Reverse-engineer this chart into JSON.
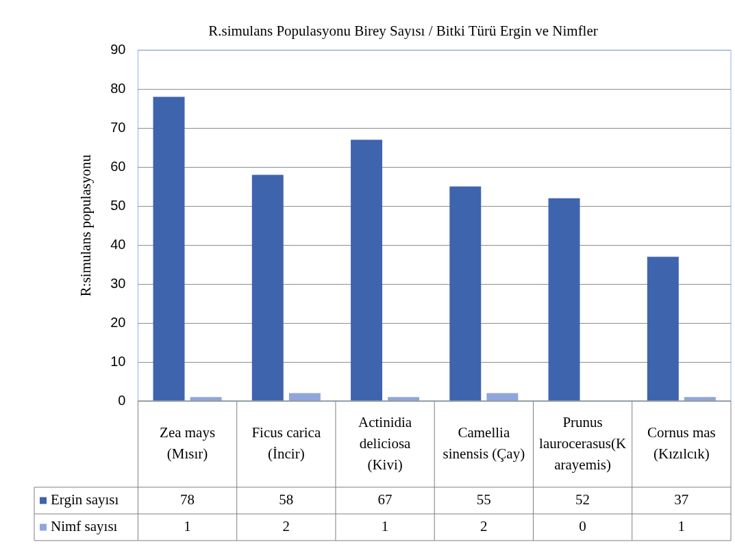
{
  "chart_data": {
    "type": "bar",
    "title": "R.simulans Populasyonu Birey Sayısı / Bitki Türü Ergin ve Nimfler",
    "ylabel": "R:simulans populasyonu",
    "categories": [
      "Zea mays (Mısır)",
      "Ficus carica (İncir)",
      "Actinidia deliciosa (Kivi)",
      "Camellia sinensis (Çay)",
      "Prunus laurocerasus(Karayemis)",
      "Cornus mas (Kızılcık)"
    ],
    "series": [
      {
        "name": "Ergin sayısı",
        "color": "#3f64ae",
        "values": [
          78,
          58,
          67,
          55,
          52,
          37
        ]
      },
      {
        "name": "Nimf sayısı",
        "color": "#8fa6db",
        "values": [
          1,
          2,
          1,
          2,
          0,
          1
        ]
      }
    ],
    "ylim": [
      0,
      90
    ],
    "yticks": [
      0,
      10,
      20,
      30,
      40,
      50,
      60,
      70,
      80,
      90
    ],
    "grid": "y",
    "legend": "bottom left",
    "data_labels": true
  }
}
